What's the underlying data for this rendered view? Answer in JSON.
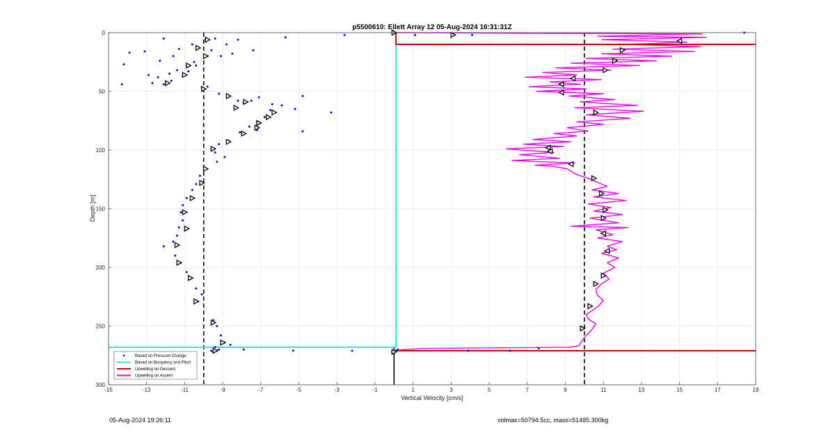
{
  "chart_data": {
    "type": "scatter",
    "title": "p5500610: Ellett Array 12 05-Aug-2024 16:31:31Z",
    "xlabel": "Vertical Velocity [cm/s]",
    "ylabel": "Depth [m]",
    "xlim": [
      -15,
      19
    ],
    "ylim": [
      0,
      300
    ],
    "y_reversed": true,
    "grid": true,
    "xticks": [
      -15,
      -13,
      -11,
      -9,
      -7,
      -5,
      -3,
      -1,
      1,
      3,
      5,
      7,
      9,
      11,
      13,
      15,
      17,
      19
    ],
    "yticks": [
      0,
      50,
      100,
      150,
      200,
      250,
      300
    ],
    "legend_position": "bottom-left",
    "legend": [
      {
        "label": "Based on Pressure Change",
        "color": "#0000cc",
        "style": "dot"
      },
      {
        "label": "Based on Buoyancy and Pitch",
        "color": "#2ee6e6",
        "style": "line"
      },
      {
        "label": "Upwelling on Descent",
        "color": "#cc0000",
        "style": "line"
      },
      {
        "label": "Upwelling on Ascent",
        "color": "#e600e6",
        "style": "line"
      }
    ],
    "reference_lines": {
      "dashed_vertical_x": [
        -10,
        10
      ],
      "zero_vertical_x": 0
    },
    "series": [
      {
        "name": "Based on Pressure Change",
        "color": "#0000cc",
        "points": [
          [
            -10.3,
            13
          ],
          [
            -9.9,
            6
          ],
          [
            -9.4,
            5
          ],
          [
            -9.8,
            20
          ],
          [
            -10.5,
            25
          ],
          [
            -10.9,
            28
          ],
          [
            -11.4,
            32
          ],
          [
            -11.8,
            35
          ],
          [
            -12.4,
            38
          ],
          [
            -11.1,
            37
          ],
          [
            -12.7,
            43
          ],
          [
            -12.1,
            44
          ],
          [
            -11.7,
            41
          ],
          [
            -10.4,
            28
          ],
          [
            -10.8,
            33
          ],
          [
            -9.1,
            20
          ],
          [
            -8.5,
            18
          ],
          [
            -9.6,
            15
          ],
          [
            -10.6,
            10
          ],
          [
            -11.3,
            14
          ],
          [
            -12.1,
            5
          ],
          [
            -13.1,
            16
          ],
          [
            -13.9,
            17
          ],
          [
            -14.2,
            27
          ],
          [
            -14.3,
            44
          ],
          [
            -12.9,
            36
          ],
          [
            -12.3,
            24
          ],
          [
            -11.6,
            20
          ],
          [
            -8.8,
            10
          ],
          [
            -8.2,
            6
          ],
          [
            -7.4,
            15
          ],
          [
            -5.7,
            4
          ],
          [
            -10,
            48
          ],
          [
            -10.1,
            47
          ],
          [
            -9.8,
            46
          ],
          [
            -9.2,
            52
          ],
          [
            -8.7,
            55
          ],
          [
            -8.2,
            58
          ],
          [
            -7.9,
            60
          ],
          [
            -7.5,
            58
          ],
          [
            -7.1,
            55
          ],
          [
            -6.4,
            61
          ],
          [
            -5.9,
            62
          ],
          [
            -5.2,
            65
          ],
          [
            -4.8,
            54
          ],
          [
            -4.8,
            84
          ],
          [
            -3.3,
            68
          ],
          [
            -6.5,
            66
          ],
          [
            -6.8,
            72
          ],
          [
            -7.2,
            76
          ],
          [
            -7.6,
            80
          ],
          [
            -7.2,
            83
          ],
          [
            -8.1,
            85
          ],
          [
            -8.7,
            92
          ],
          [
            -9.2,
            95
          ],
          [
            -9.6,
            99
          ],
          [
            -9.4,
            102
          ],
          [
            -8.9,
            106
          ],
          [
            -9.3,
            110
          ],
          [
            -9.9,
            116
          ],
          [
            -10.2,
            122
          ],
          [
            -10.4,
            129
          ],
          [
            -10.6,
            134
          ],
          [
            -10.9,
            141
          ],
          [
            -11.1,
            147
          ],
          [
            -11.2,
            153
          ],
          [
            -11.1,
            160
          ],
          [
            -11.3,
            166
          ],
          [
            -11.4,
            173
          ],
          [
            -11.6,
            178
          ],
          [
            -12.1,
            182
          ],
          [
            -11.5,
            190
          ],
          [
            -11.2,
            196
          ],
          [
            -10.9,
            204
          ],
          [
            -10.7,
            210
          ],
          [
            -10.4,
            218
          ],
          [
            -10.1,
            223
          ],
          [
            -10.3,
            229
          ],
          [
            -9.5,
            245
          ],
          [
            -9.3,
            250
          ],
          [
            -9.1,
            258
          ],
          [
            -8.9,
            264
          ],
          [
            -9.4,
            268
          ],
          [
            -9.2,
            270
          ],
          [
            -8.6,
            266
          ],
          [
            -7.9,
            270
          ],
          [
            -5.3,
            271
          ],
          [
            -2.2,
            271
          ],
          [
            -2.6,
            2
          ],
          [
            1.1,
            2
          ],
          [
            4.1,
            2
          ],
          [
            6.1,
            271
          ],
          [
            7.6,
            269
          ],
          [
            3.9,
            271
          ],
          [
            18.4,
            0
          ],
          [
            -9.3,
            271
          ],
          [
            -9.5,
            272
          ],
          [
            -9.6,
            271
          ],
          [
            -0.1,
            272
          ],
          [
            0.1,
            271
          ],
          [
            0.2,
            270
          ]
        ]
      },
      {
        "name": "Based on Buoyancy and Pitch",
        "color": "#2ee6e6",
        "points": [
          [
            0.1,
            0
          ],
          [
            0.1,
            268
          ],
          [
            -15,
            268
          ]
        ]
      },
      {
        "name": "Upwelling on Descent",
        "color": "#cc0000",
        "points": [
          [
            0.1,
            0
          ],
          [
            0.1,
            10
          ],
          [
            19,
            10
          ],
          [
            0.1,
            271
          ],
          [
            19,
            271
          ]
        ]
      },
      {
        "name": "Upwelling on Ascent",
        "color": "#e600e6",
        "points": [
          [
            0.2,
            271
          ],
          [
            0.5,
            270
          ],
          [
            1.8,
            269
          ],
          [
            4.5,
            268.6
          ],
          [
            6.6,
            268.4
          ],
          [
            9.2,
            268
          ],
          [
            9.7,
            267
          ],
          [
            9.9,
            262
          ],
          [
            10.1,
            258
          ],
          [
            10.4,
            253
          ],
          [
            10.6,
            248
          ],
          [
            10.2,
            244
          ],
          [
            10.1,
            240
          ],
          [
            10.5,
            236
          ],
          [
            10.8,
            232
          ],
          [
            11.0,
            228
          ],
          [
            10.7,
            224
          ],
          [
            10.6,
            219
          ],
          [
            10.9,
            214
          ],
          [
            11.3,
            210
          ],
          [
            11.0,
            205
          ],
          [
            11.6,
            200
          ],
          [
            11.2,
            196
          ],
          [
            11.8,
            192
          ],
          [
            10.9,
            188
          ],
          [
            11.7,
            185
          ],
          [
            11.2,
            182
          ],
          [
            12.0,
            178
          ],
          [
            10.7,
            175
          ],
          [
            11.5,
            172
          ],
          [
            10.6,
            168
          ],
          [
            12.3,
            166
          ],
          [
            9.3,
            165
          ],
          [
            11.8,
            162
          ],
          [
            10.3,
            158
          ],
          [
            12.0,
            155
          ],
          [
            10.5,
            152
          ],
          [
            11.4,
            149
          ],
          [
            10.2,
            146
          ],
          [
            12.2,
            143
          ],
          [
            10.5,
            140
          ],
          [
            11.8,
            137
          ],
          [
            10.4,
            134
          ],
          [
            11.2,
            131
          ],
          [
            10.6,
            127
          ],
          [
            10.2,
            124
          ],
          [
            9.6,
            121
          ],
          [
            9.1,
            116
          ],
          [
            8.4,
            114
          ],
          [
            7.4,
            113
          ],
          [
            9.5,
            111
          ],
          [
            6.2,
            109
          ],
          [
            8.7,
            107
          ],
          [
            6.6,
            104
          ],
          [
            8.4,
            102
          ],
          [
            5.9,
            99
          ],
          [
            8.9,
            97
          ],
          [
            6.8,
            95
          ],
          [
            9.3,
            93
          ],
          [
            7.3,
            91
          ],
          [
            9.6,
            88
          ],
          [
            8.4,
            86
          ],
          [
            10.2,
            84
          ],
          [
            9.1,
            81
          ],
          [
            11.0,
            78
          ],
          [
            9.6,
            76
          ],
          [
            12.4,
            73
          ],
          [
            10.1,
            70
          ],
          [
            13.1,
            67
          ],
          [
            9.5,
            64
          ],
          [
            12.8,
            62
          ],
          [
            9.8,
            59
          ],
          [
            11.6,
            57
          ],
          [
            9.2,
            54
          ],
          [
            11.0,
            52
          ],
          [
            7.5,
            50
          ],
          [
            10.1,
            48
          ],
          [
            7.1,
            46
          ],
          [
            9.8,
            44
          ],
          [
            8.2,
            42
          ],
          [
            10.9,
            40
          ],
          [
            6.9,
            38
          ],
          [
            9.6,
            36
          ],
          [
            7.8,
            34
          ],
          [
            11.4,
            32
          ],
          [
            8.5,
            30
          ],
          [
            12.9,
            28
          ],
          [
            9.3,
            26
          ],
          [
            13.8,
            24
          ],
          [
            10.1,
            22
          ],
          [
            14.6,
            20
          ],
          [
            10.9,
            18
          ],
          [
            15.8,
            16
          ],
          [
            11.5,
            14
          ],
          [
            16.1,
            12
          ],
          [
            12.3,
            10
          ],
          [
            15.4,
            8
          ],
          [
            10.9,
            6
          ],
          [
            16.4,
            4
          ],
          [
            10.7,
            3
          ],
          [
            16.2,
            1
          ],
          [
            6.0,
            0.5
          ],
          [
            0.1,
            0
          ]
        ]
      }
    ],
    "markers": [
      [
        0,
        0,
        "ascent"
      ],
      [
        3.1,
        2,
        "ascent"
      ],
      [
        15.0,
        7,
        "descent"
      ],
      [
        12.0,
        15,
        "ascent"
      ],
      [
        11.6,
        24,
        "ascent"
      ],
      [
        11.1,
        32,
        "ascent"
      ],
      [
        9.4,
        39,
        "descent"
      ],
      [
        8.8,
        44,
        "descent"
      ],
      [
        8.8,
        51,
        "descent"
      ],
      [
        10.6,
        68,
        "ascent"
      ],
      [
        8.1,
        98,
        "descent"
      ],
      [
        8.2,
        101,
        "descent"
      ],
      [
        9.3,
        112,
        "descent"
      ],
      [
        10.5,
        124,
        "ascent"
      ],
      [
        10.9,
        137,
        "ascent"
      ],
      [
        11.1,
        151,
        "ascent"
      ],
      [
        11.0,
        158,
        "ascent"
      ],
      [
        11.0,
        171,
        "descent"
      ],
      [
        11.2,
        186,
        "descent"
      ],
      [
        11.0,
        207,
        "ascent"
      ],
      [
        10.6,
        214,
        "ascent"
      ],
      [
        10.3,
        233,
        "ascent"
      ],
      [
        9.9,
        252,
        "ascent"
      ],
      [
        -9.8,
        6,
        "ascent"
      ],
      [
        -10.3,
        13,
        "ascent"
      ],
      [
        -9.9,
        20,
        "ascent"
      ],
      [
        -10.8,
        28,
        "ascent"
      ],
      [
        -11.0,
        36,
        "ascent"
      ],
      [
        -11.9,
        43,
        "ascent"
      ],
      [
        -10.0,
        48,
        "ascent"
      ],
      [
        -8.7,
        54,
        "ascent"
      ],
      [
        -7.8,
        59,
        "ascent"
      ],
      [
        -8.3,
        64,
        "ascent"
      ],
      [
        -6.3,
        68,
        "ascent"
      ],
      [
        -6.6,
        72,
        "ascent"
      ],
      [
        -7.1,
        77,
        "ascent"
      ],
      [
        -7.2,
        81,
        "ascent"
      ],
      [
        -7.9,
        86,
        "ascent"
      ],
      [
        -8.7,
        93,
        "ascent"
      ],
      [
        -9.5,
        99,
        "ascent"
      ],
      [
        -9.9,
        116,
        "ascent"
      ],
      [
        -10.1,
        128,
        "ascent"
      ],
      [
        -10.6,
        141,
        "ascent"
      ],
      [
        -11.0,
        153,
        "ascent"
      ],
      [
        -10.9,
        167,
        "ascent"
      ],
      [
        -11.4,
        181,
        "ascent"
      ],
      [
        -11.3,
        196,
        "ascent"
      ],
      [
        -10.7,
        209,
        "ascent"
      ],
      [
        -10.4,
        229,
        "ascent"
      ],
      [
        -9.5,
        247,
        "ascent"
      ],
      [
        -9.0,
        264,
        "ascent"
      ],
      [
        -9.4,
        271,
        "ascent"
      ],
      [
        0,
        272,
        "ascent"
      ]
    ]
  },
  "footer": {
    "timestamp": "05-Aug-2024 19:26:11",
    "stats": "volmax=50794.5cc, mass=51485.300kg"
  }
}
